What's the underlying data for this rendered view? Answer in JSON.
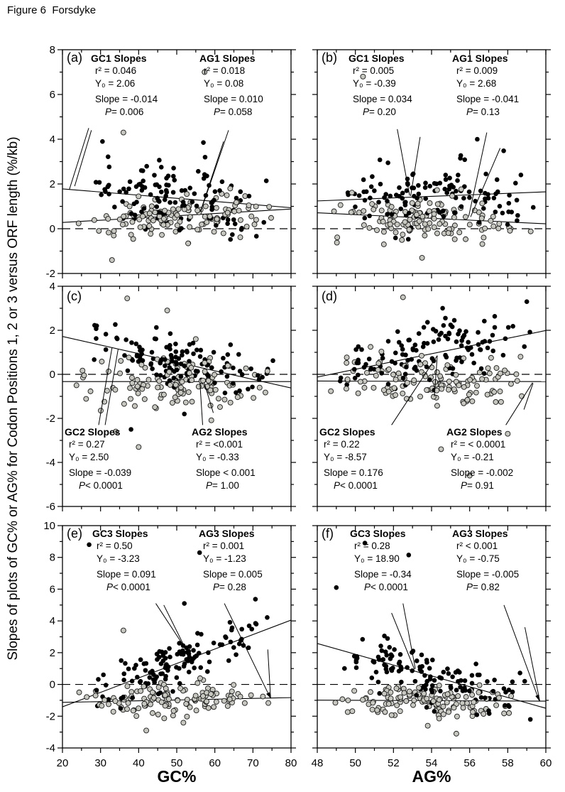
{
  "page": {
    "title": "Figure 6  Forsdyke"
  },
  "figure": {
    "y_axis_label": "Slopes of plots of GC% or AG% for Codon Positions 1, 2 or 3 versus ORF length (%/kb)",
    "x_axis_left": "GC%",
    "x_axis_right": "AG%"
  },
  "colors": {
    "black_series": "#000000",
    "gray_series": "#c7c7c0",
    "gray_edge": "#1c1c1c",
    "line": "#000000",
    "background": "#ffffff"
  },
  "chart_data": [
    {
      "id": "a",
      "letter": "(a)",
      "type": "scatter",
      "xlim": [
        20,
        80
      ],
      "ylim": [
        -2,
        8
      ],
      "xticks": [
        20,
        30,
        40,
        50,
        60,
        70,
        80
      ],
      "x_minor": 5,
      "yticks": [
        8,
        6,
        4,
        2,
        0,
        -2
      ],
      "y_minor": 1,
      "zero_line": true,
      "seed": 101,
      "series": [
        {
          "name": "GC1",
          "marker": "black",
          "n": 125,
          "x_range": [
            23,
            77
          ],
          "intercept": 2.06,
          "slope": -0.014,
          "sd": 0.75,
          "outliers": [
            [
              30.5,
              3.9
            ],
            [
              57,
              3.85
            ]
          ]
        },
        {
          "name": "AG1",
          "marker": "gray",
          "n": 125,
          "x_range": [
            23,
            77
          ],
          "intercept": 0.08,
          "slope": 0.01,
          "sd": 0.5,
          "outliers": [
            [
              57.3,
              7.0
            ],
            [
              36,
              4.3
            ],
            [
              33,
              -1.4
            ]
          ]
        }
      ],
      "leaders": [
        {
          "segments": [
            [
              26.9,
              4.5,
              21.8,
              1.75
            ],
            [
              27.6,
              4.4,
              23.2,
              1.9
            ]
          ],
          "arrow": false
        },
        {
          "segments": [
            [
              63.6,
              4.4,
              56.3,
              0.78
            ],
            [
              62.3,
              3.9,
              56.2,
              0.76
            ]
          ],
          "arrow": false
        }
      ],
      "stats": [
        {
          "title": "GC1 Slopes",
          "lines": [
            "r² = 0.046",
            "Y₀ = 2.06",
            "Slope = -0.014"
          ],
          "p_label": "P",
          "p_value": "= 0.006",
          "pos": [
            40,
            3
          ]
        },
        {
          "title": "AG1 Slopes",
          "lines": [
            "r² = 0.018",
            "Y₀ = 0.08",
            "Slope = 0.010"
          ],
          "p_label": "P",
          "p_value": "= 0.058",
          "pos": [
            193,
            3
          ]
        }
      ],
      "letter_pos": [
        6,
        2
      ]
    },
    {
      "id": "b",
      "letter": "(b)",
      "type": "scatter",
      "xlim": [
        48,
        60
      ],
      "ylim": [
        -2,
        8
      ],
      "xticks": [
        48,
        50,
        52,
        54,
        56,
        58,
        60
      ],
      "x_minor": 1,
      "yticks": [
        8,
        6,
        4,
        2,
        0,
        -2
      ],
      "y_minor": 1,
      "zero_line": true,
      "seed": 202,
      "series": [
        {
          "name": "GC1",
          "marker": "black",
          "n": 125,
          "x_range": [
            48.3,
            59.8
          ],
          "intercept": -0.39,
          "slope": 0.034,
          "sd": 0.75,
          "outliers": [
            [
              56.4,
              4.0
            ]
          ]
        },
        {
          "name": "AG1",
          "marker": "gray",
          "n": 125,
          "x_range": [
            48.3,
            59.8
          ],
          "intercept": 2.68,
          "slope": -0.041,
          "sd": 0.5,
          "outliers": [
            [
              50.4,
              6.8
            ],
            [
              53.5,
              -1.3
            ]
          ]
        }
      ],
      "leaders": [
        {
          "segments": [
            [
              52.2,
              4.45,
              52.85,
              1.48
            ],
            [
              53.4,
              4.1,
              52.9,
              1.46
            ]
          ],
          "arrow": false
        },
        {
          "segments": [
            [
              56.9,
              4.3,
              55.95,
              0.55
            ],
            [
              57.6,
              3.6,
              56.05,
              0.53
            ]
          ],
          "arrow": false
        }
      ],
      "stats": [
        {
          "title": "GC1 Slopes",
          "lines": [
            "r² = 0.005",
            "Y₀ = -0.39",
            "Slope = 0.034"
          ],
          "p_label": "P",
          "p_value": "= 0.20",
          "pos": [
            44,
            3
          ]
        },
        {
          "title": "AG1 Slopes",
          "lines": [
            "r² = 0.009",
            "Y₀ = 2.68",
            "Slope = -0.041"
          ],
          "p_label": "P",
          "p_value": "= 0.13",
          "pos": [
            190,
            3
          ]
        }
      ],
      "letter_pos": [
        6,
        2
      ]
    },
    {
      "id": "c",
      "letter": "(c)",
      "type": "scatter",
      "xlim": [
        20,
        80
      ],
      "ylim": [
        -6,
        4
      ],
      "xticks": [
        20,
        30,
        40,
        50,
        60,
        70,
        80
      ],
      "x_minor": 5,
      "yticks": [
        4,
        2,
        0,
        -2,
        -4,
        -6
      ],
      "y_minor": 1,
      "zero_line": true,
      "seed": 303,
      "series": [
        {
          "name": "GC2",
          "marker": "black",
          "n": 125,
          "x_range": [
            23,
            77
          ],
          "intercept": 2.5,
          "slope": -0.039,
          "sd": 0.55,
          "outliers": [
            [
              38,
              -2.5
            ],
            [
              52,
              -1.8
            ]
          ]
        },
        {
          "name": "AG2",
          "marker": "gray",
          "n": 125,
          "x_range": [
            23,
            77
          ],
          "intercept": -0.33,
          "slope": 0.0,
          "sd": 0.55,
          "outliers": [
            [
              37,
              3.45
            ],
            [
              47.5,
              2.9
            ],
            [
              40,
              -3.3
            ],
            [
              34,
              -2.6
            ]
          ]
        }
      ],
      "leaders": [
        {
          "segments": [
            [
              29.5,
              -2.3,
              33.0,
              1.2
            ],
            [
              31.2,
              -2.3,
              34.6,
              1.13
            ]
          ],
          "arrow": false
        },
        {
          "segments": [
            [
              56.8,
              -2.3,
              56.1,
              -0.4
            ],
            [
              59.6,
              -1.75,
              57.2,
              -0.37
            ]
          ],
          "arrow": false
        }
      ],
      "stats": [
        {
          "title": "GC2 Slopes",
          "lines": [
            "r² = 0.27",
            "Y₀ = 2.50",
            "Slope = -0.039"
          ],
          "p_label": "P",
          "p_value": "< 0.0001",
          "pos": [
            3,
            196
          ]
        },
        {
          "title": "AG2 Slopes",
          "lines": [
            "r² = <0.001",
            "Y₀ = -0.33",
            "Slope < 0.001"
          ],
          "p_label": "P",
          "p_value": "= 1.00",
          "pos": [
            182,
            196
          ]
        }
      ],
      "letter_pos": [
        6,
        5
      ]
    },
    {
      "id": "d",
      "letter": "(d)",
      "type": "scatter",
      "xlim": [
        48,
        60
      ],
      "ylim": [
        -6,
        4
      ],
      "xticks": [
        48,
        50,
        52,
        54,
        56,
        58,
        60
      ],
      "x_minor": 1,
      "yticks": [
        4,
        2,
        0,
        -2,
        -4,
        -6
      ],
      "y_minor": 1,
      "zero_line": true,
      "seed": 404,
      "series": [
        {
          "name": "GC2",
          "marker": "black",
          "n": 125,
          "x_range": [
            48.3,
            59.8
          ],
          "intercept": -8.57,
          "slope": 0.176,
          "sd": 0.6,
          "outliers": [
            [
              59,
              3.3
            ]
          ]
        },
        {
          "name": "AG2",
          "marker": "gray",
          "n": 125,
          "x_range": [
            48.3,
            59.8
          ],
          "intercept": -0.21,
          "slope": -0.002,
          "sd": 0.55,
          "outliers": [
            [
              52.5,
              3.5
            ],
            [
              56,
              -4.6
            ],
            [
              58,
              -2.7
            ],
            [
              54.5,
              -3.4
            ]
          ]
        }
      ],
      "leaders": [
        {
          "segments": [
            [
              51.9,
              -2.3,
              54.3,
              0.85
            ],
            [
              54.15,
              -1.0,
              54.3,
              0.85
            ]
          ],
          "arrow": false
        },
        {
          "segments": [
            [
              57.9,
              -2.3,
              59.3,
              -0.38
            ],
            [
              58.85,
              -1.6,
              59.33,
              -0.4
            ]
          ],
          "arrow": false
        }
      ],
      "stats": [
        {
          "title": "GC2 Slopes",
          "lines": [
            "r² = 0.22",
            "Y₀ = -8.57",
            "Slope = 0.176"
          ],
          "p_label": "P",
          "p_value": "< 0.0001",
          "pos": [
            3,
            196
          ]
        },
        {
          "title": "AG2 Slopes",
          "lines": [
            "r² = < 0.0001",
            "Y₀ = -0.21",
            "Slope = -0.002"
          ],
          "p_label": "P",
          "p_value": "= 0.91",
          "pos": [
            182,
            196
          ]
        }
      ],
      "letter_pos": [
        6,
        5
      ]
    },
    {
      "id": "e",
      "letter": "(e)",
      "type": "scatter",
      "xlim": [
        20,
        80
      ],
      "ylim": [
        -4,
        10
      ],
      "xticks": [
        20,
        30,
        40,
        50,
        60,
        70,
        80
      ],
      "x_minor": 5,
      "yticks": [
        10,
        8,
        6,
        4,
        2,
        0,
        -2,
        -4
      ],
      "y_minor": 1,
      "zero_line": true,
      "seed": 505,
      "series": [
        {
          "name": "GC3",
          "marker": "black",
          "n": 125,
          "x_range": [
            23,
            77
          ],
          "intercept": -3.23,
          "slope": 0.091,
          "sd": 0.75,
          "outliers": [
            [
              27,
              8.8
            ],
            [
              56,
              8.3
            ],
            [
              52,
              5.1
            ]
          ]
        },
        {
          "name": "AG3",
          "marker": "gray",
          "n": 125,
          "x_range": [
            23,
            77
          ],
          "intercept": -1.23,
          "slope": 0.005,
          "sd": 0.5,
          "outliers": [
            [
              36,
              3.4
            ],
            [
              42,
              -2.9
            ]
          ]
        }
      ],
      "leaders": [
        {
          "segments": [
            [
              44.5,
              5.1,
              52.3,
              2.25
            ],
            [
              46.6,
              5.0,
              52.35,
              2.23
            ]
          ],
          "arrow": false
        },
        {
          "segments": [
            [
              62.5,
              5.1,
              74.6,
              -0.86
            ],
            [
              73.9,
              2.2,
              74.65,
              -0.88
            ]
          ],
          "arrow": true
        }
      ],
      "stats": [
        {
          "title": "GC3 Slopes",
          "lines": [
            "r² = 0.50",
            "Y₀ = -3.23",
            "Slope = 0.091"
          ],
          "p_label": "P",
          "p_value": "< 0.0001",
          "pos": [
            42,
            2
          ]
        },
        {
          "title": "AG3 Slopes",
          "lines": [
            "r² = 0.001",
            "Y₀ = -1.23",
            "Slope = 0.005"
          ],
          "p_label": "P",
          "p_value": "= 0.28",
          "pos": [
            192,
            2
          ]
        }
      ],
      "letter_pos": [
        6,
        2
      ]
    },
    {
      "id": "f",
      "letter": "(f)",
      "type": "scatter",
      "xlim": [
        48,
        60
      ],
      "ylim": [
        -4,
        10
      ],
      "xticks": [
        48,
        50,
        52,
        54,
        56,
        58,
        60
      ],
      "x_minor": 1,
      "yticks": [
        10,
        8,
        6,
        4,
        2,
        0,
        -2,
        -4
      ],
      "y_minor": 1,
      "zero_line": true,
      "seed": 606,
      "series": [
        {
          "name": "GC3",
          "marker": "black",
          "n": 125,
          "x_range": [
            48.3,
            59.8
          ],
          "intercept": 18.9,
          "slope": -0.34,
          "sd": 0.8,
          "outliers": [
            [
              50.5,
              8.9
            ],
            [
              52.8,
              8.15
            ],
            [
              49,
              6.1
            ]
          ]
        },
        {
          "name": "AG3",
          "marker": "gray",
          "n": 125,
          "x_range": [
            48.3,
            59.8
          ],
          "intercept": -0.75,
          "slope": -0.005,
          "sd": 0.45,
          "outliers": [
            [
              55.3,
              -3.1
            ],
            [
              53.8,
              -2.6
            ]
          ]
        }
      ],
      "leaders": [
        {
          "segments": [
            [
              52.5,
              5.1,
              53.15,
              0.98
            ],
            [
              51.9,
              4.5,
              53.1,
              0.96
            ]
          ],
          "arrow": false
        },
        {
          "segments": [
            [
              57.8,
              5.0,
              59.65,
              -1.02
            ],
            [
              58.9,
              3.6,
              59.68,
              -1.04
            ]
          ],
          "arrow": true
        }
      ],
      "stats": [
        {
          "title": "GC3 Slopes",
          "lines": [
            "r² = 0.28",
            "Y₀ = 18.90",
            "Slope = -0.34"
          ],
          "p_label": "P",
          "p_value": "< 0.0001",
          "pos": [
            46,
            2
          ]
        },
        {
          "title": "AG3 Slopes",
          "lines": [
            "r² < 0.001",
            "Y₀ = -0.75",
            "Slope = -0.005"
          ],
          "p_label": "P",
          "p_value": "= 0.82",
          "pos": [
            190,
            2
          ]
        }
      ],
      "letter_pos": [
        6,
        2
      ]
    }
  ]
}
